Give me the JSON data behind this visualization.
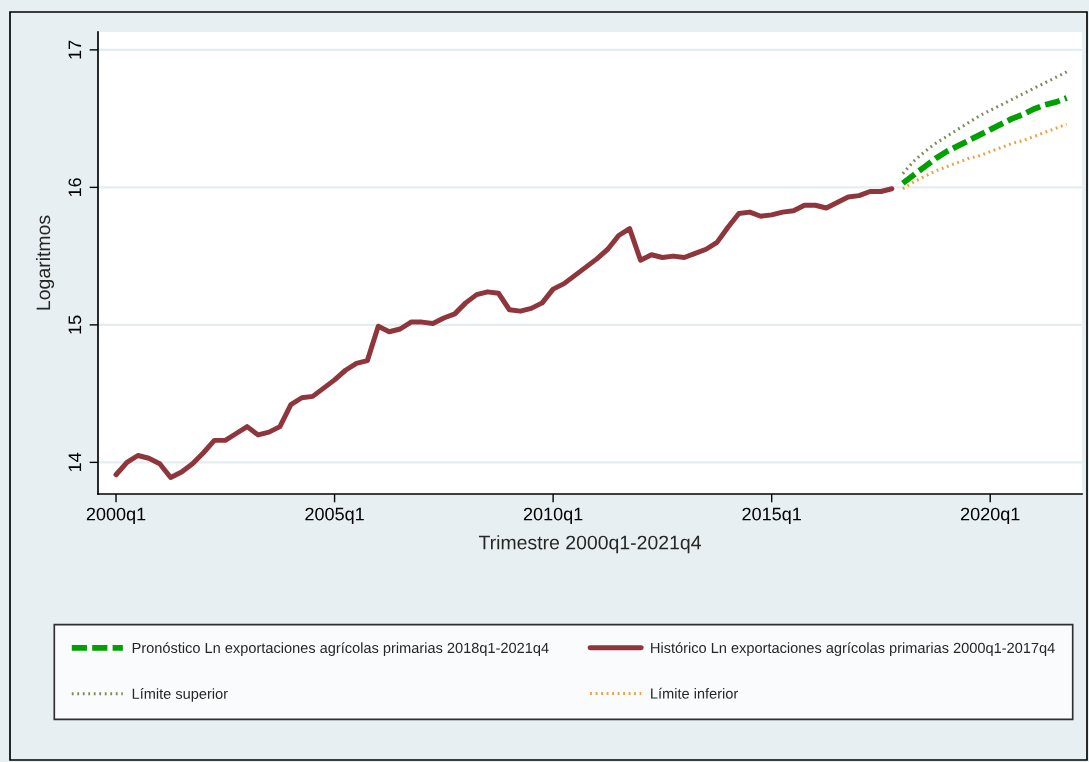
{
  "chart_data": {
    "type": "line",
    "xlabel": "Trimestre 2000q1-2021q4",
    "ylabel": "Logaritmos",
    "categories": [
      "2000q1",
      null,
      null,
      null,
      null,
      null,
      null,
      null,
      null,
      null,
      null,
      null,
      null,
      null,
      null,
      null,
      null,
      null,
      null,
      null,
      "2005q1",
      null,
      null,
      null,
      null,
      null,
      null,
      null,
      null,
      null,
      null,
      null,
      null,
      null,
      null,
      null,
      null,
      null,
      null,
      null,
      "2010q1",
      null,
      null,
      null,
      null,
      null,
      null,
      null,
      null,
      null,
      null,
      null,
      null,
      null,
      null,
      null,
      null,
      null,
      null,
      null,
      "2015q1",
      null,
      null,
      null,
      null,
      null,
      null,
      null,
      null,
      null,
      null,
      null,
      null,
      null,
      null,
      null,
      null,
      null,
      null,
      null,
      "2020q1",
      null,
      null,
      null,
      null,
      null,
      null,
      null
    ],
    "ylim": [
      13.77,
      17.13
    ],
    "yticks": [
      14,
      15,
      16,
      17
    ],
    "grid": "y",
    "legend": "bottom",
    "series": [
      {
        "name": "Pronóstico Ln exportaciones agrícolas primarias 2018q1-2021q4",
        "color": "#00a000",
        "line_style": "dashed",
        "values": [
          null,
          null,
          null,
          null,
          null,
          null,
          null,
          null,
          null,
          null,
          null,
          null,
          null,
          null,
          null,
          null,
          null,
          null,
          null,
          null,
          null,
          null,
          null,
          null,
          null,
          null,
          null,
          null,
          null,
          null,
          null,
          null,
          null,
          null,
          null,
          null,
          null,
          null,
          null,
          null,
          null,
          null,
          null,
          null,
          null,
          null,
          null,
          null,
          null,
          null,
          null,
          null,
          null,
          null,
          null,
          null,
          null,
          null,
          null,
          null,
          null,
          null,
          null,
          null,
          null,
          null,
          null,
          null,
          null,
          null,
          null,
          null,
          16.03,
          16.09,
          16.15,
          16.21,
          16.26,
          16.3,
          16.34,
          16.38,
          16.42,
          16.46,
          16.5,
          16.53,
          16.57,
          16.6,
          16.62,
          16.65
        ]
      },
      {
        "name": "Histórico Ln exportaciones agrícolas primarias 2000q1-2017q4",
        "color": "#8f363c",
        "line_style": "solid",
        "values": [
          13.91,
          14.0,
          14.05,
          14.03,
          13.99,
          13.89,
          13.93,
          13.99,
          14.07,
          14.16,
          14.16,
          14.21,
          14.26,
          14.2,
          14.22,
          14.26,
          14.42,
          14.47,
          14.48,
          14.54,
          14.6,
          14.67,
          14.72,
          14.74,
          14.99,
          14.95,
          14.97,
          15.02,
          15.02,
          15.01,
          15.05,
          15.08,
          15.16,
          15.22,
          15.24,
          15.23,
          15.11,
          15.1,
          15.12,
          15.16,
          15.26,
          15.3,
          15.36,
          15.42,
          15.48,
          15.55,
          15.65,
          15.7,
          15.47,
          15.51,
          15.49,
          15.5,
          15.49,
          15.52,
          15.55,
          15.6,
          15.71,
          15.81,
          15.82,
          15.79,
          15.8,
          15.82,
          15.83,
          15.87,
          15.87,
          15.85,
          15.89,
          15.93,
          15.94,
          15.97,
          15.97,
          15.99,
          null,
          null,
          null,
          null,
          null,
          null,
          null,
          null,
          null,
          null,
          null,
          null,
          null,
          null,
          null,
          null
        ]
      },
      {
        "name": "Límite superior",
        "color": "#7d8c5c",
        "line_style": "dotted",
        "values": [
          null,
          null,
          null,
          null,
          null,
          null,
          null,
          null,
          null,
          null,
          null,
          null,
          null,
          null,
          null,
          null,
          null,
          null,
          null,
          null,
          null,
          null,
          null,
          null,
          null,
          null,
          null,
          null,
          null,
          null,
          null,
          null,
          null,
          null,
          null,
          null,
          null,
          null,
          null,
          null,
          null,
          null,
          null,
          null,
          null,
          null,
          null,
          null,
          null,
          null,
          null,
          null,
          null,
          null,
          null,
          null,
          null,
          null,
          null,
          null,
          null,
          null,
          null,
          null,
          null,
          null,
          null,
          null,
          null,
          null,
          null,
          null,
          16.1,
          16.19,
          16.26,
          16.32,
          16.37,
          16.42,
          16.47,
          16.52,
          16.56,
          16.6,
          16.64,
          16.68,
          16.72,
          16.76,
          16.8,
          16.84
        ]
      },
      {
        "name": "Límite inferior",
        "color": "#f0a040",
        "line_style": "dotted",
        "values": [
          null,
          null,
          null,
          null,
          null,
          null,
          null,
          null,
          null,
          null,
          null,
          null,
          null,
          null,
          null,
          null,
          null,
          null,
          null,
          null,
          null,
          null,
          null,
          null,
          null,
          null,
          null,
          null,
          null,
          null,
          null,
          null,
          null,
          null,
          null,
          null,
          null,
          null,
          null,
          null,
          null,
          null,
          null,
          null,
          null,
          null,
          null,
          null,
          null,
          null,
          null,
          null,
          null,
          null,
          null,
          null,
          null,
          null,
          null,
          null,
          null,
          null,
          null,
          null,
          null,
          null,
          null,
          null,
          null,
          null,
          null,
          null,
          15.99,
          16.04,
          16.08,
          16.12,
          16.15,
          16.18,
          16.21,
          16.23,
          16.26,
          16.29,
          16.32,
          16.34,
          16.37,
          16.4,
          16.43,
          16.46
        ]
      }
    ]
  }
}
